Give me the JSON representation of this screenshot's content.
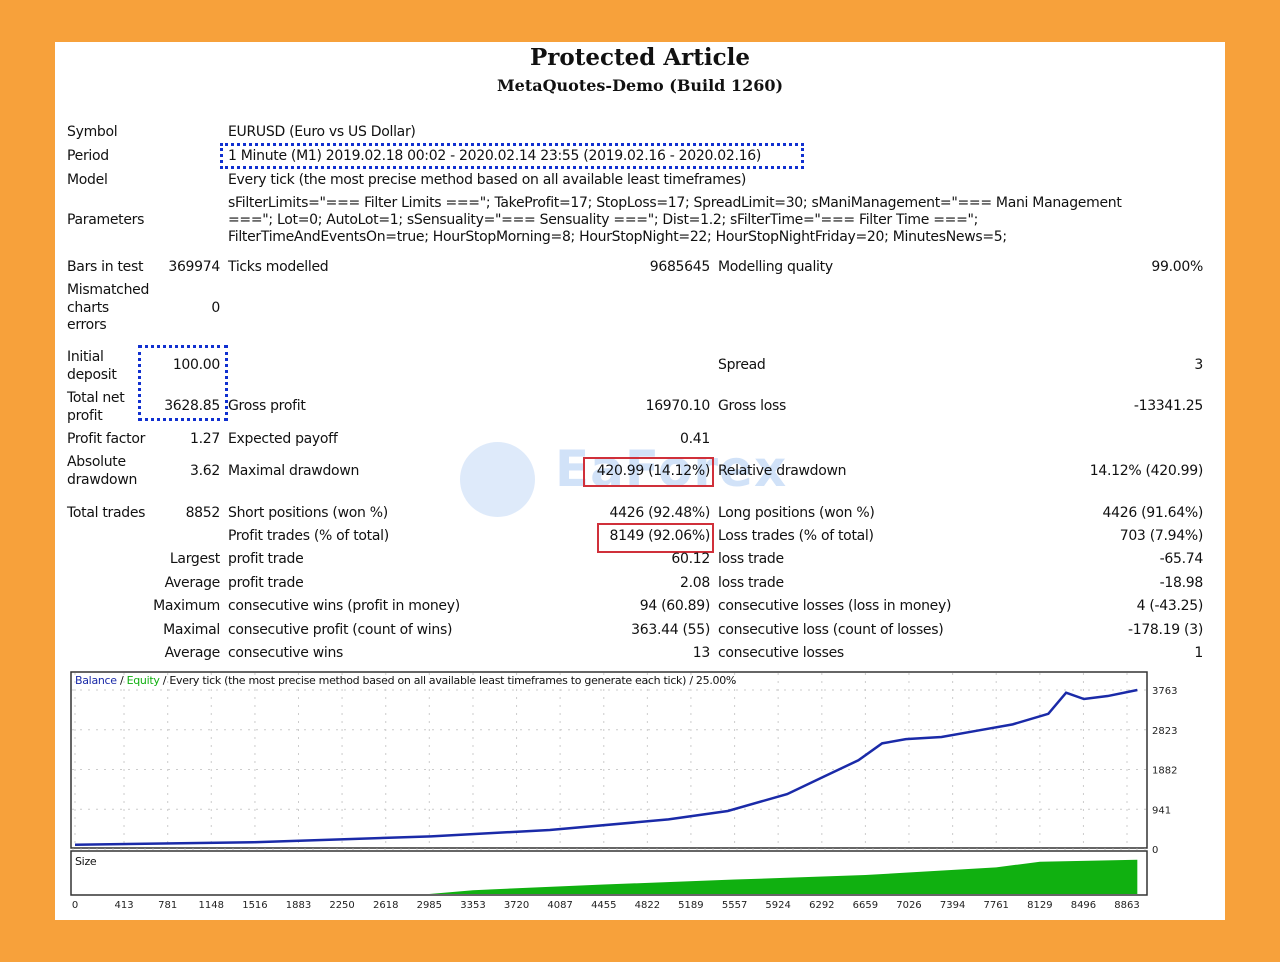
{
  "header": {
    "title": "Protected Article",
    "subtitle": "MetaQuotes-Demo (Build 1260)"
  },
  "info": {
    "symbol_label": "Symbol",
    "symbol": "EURUSD (Euro vs US Dollar)",
    "period_label": "Period",
    "period": "1 Minute (M1) 2019.02.18 00:02 - 2020.02.14 23:55 (2019.02.16 - 2020.02.16)",
    "model_label": "Model",
    "model": "Every tick (the most precise method based on all available least timeframes)",
    "parameters_label": "Parameters",
    "parameters": [
      "sFilterLimits=\"=== Filter Limits ===\"; TakeProfit=17; StopLoss=17; SpreadLimit=30; sManiManagement=\"=== Mani Management",
      "===\"; Lot=0; AutoLot=1; sSensuality=\"=== Sensuality ===\"; Dist=1.2; sFilterTime=\"=== Filter Time ===\";",
      "FilterTimeAndEventsOn=true; HourStopMorning=8; HourStopNight=22; HourStopNightFriday=20; MinutesNews=5;"
    ]
  },
  "stats": {
    "bars_label": "Bars in test",
    "bars": "369974",
    "ticks_label": "Ticks modelled",
    "ticks": "9685645",
    "quality_label": "Modelling quality",
    "quality": "99.00%",
    "mismatch_label": [
      "Mismatched",
      "charts",
      "errors"
    ],
    "mismatch": "0",
    "deposit_label": [
      "Initial",
      "deposit"
    ],
    "deposit": "100.00",
    "spread_label": "Spread",
    "spread": "3",
    "netprofit_label": [
      "Total net",
      "profit"
    ],
    "netprofit": "3628.85",
    "grossprofit_label": "Gross profit",
    "grossprofit": "16970.10",
    "grossloss_label": "Gross loss",
    "grossloss": "-13341.25",
    "pf_label": "Profit factor",
    "pf": "1.27",
    "payoff_label": "Expected payoff",
    "payoff": "0.41",
    "absdd_label": [
      "Absolute",
      "drawdown"
    ],
    "absdd": "3.62",
    "maxdd_label": "Maximal drawdown",
    "maxdd": "420.99 (14.12%)",
    "reldd_label": "Relative drawdown",
    "reldd": "14.12% (420.99)",
    "trades_label": "Total trades",
    "trades": "8852",
    "short_label": "Short positions (won %)",
    "short": "4426 (92.48%)",
    "long_label": "Long positions (won %)",
    "long": "4426 (91.64%)",
    "profittrades_label": "Profit trades (% of total)",
    "profittrades": "8149 (92.06%)",
    "losstrades_label": "Loss trades (% of total)",
    "losstrades": "703 (7.94%)",
    "rows": [
      {
        "l": "Largest",
        "a": "profit trade",
        "av": "60.12",
        "b": "loss trade",
        "bv": "-65.74"
      },
      {
        "l": "Average",
        "a": "profit trade",
        "av": "2.08",
        "b": "loss trade",
        "bv": "-18.98"
      },
      {
        "l": "Maximum",
        "a": "consecutive wins (profit in money)",
        "av": "94 (60.89)",
        "b": "consecutive losses (loss in money)",
        "bv": "4 (-43.25)"
      },
      {
        "l": "Maximal",
        "a": "consecutive profit (count of wins)",
        "av": "363.44 (55)",
        "b": "consecutive loss (count of losses)",
        "bv": "-178.19 (3)"
      },
      {
        "l": "Average",
        "a": "consecutive wins",
        "av": "13",
        "b": "consecutive losses",
        "bv": "1"
      }
    ]
  },
  "watermark": "EaForex",
  "chart_data": {
    "type": "line",
    "legend": {
      "balance": "Balance",
      "sep1": " / ",
      "equity": "Equity",
      "rest": " / Every tick (the most precise method based on all available least timeframes to generate each tick) / 25.00%"
    },
    "y_ticks": [
      "3763",
      "2823",
      "1882",
      "941",
      "0"
    ],
    "ylim": [
      0,
      3763
    ],
    "x_ticks": [
      "0",
      "413",
      "781",
      "1148",
      "1516",
      "1883",
      "2250",
      "2618",
      "2985",
      "3353",
      "3720",
      "4087",
      "4455",
      "4822",
      "5189",
      "5557",
      "5924",
      "6292",
      "6659",
      "7026",
      "7394",
      "7761",
      "8129",
      "8496",
      "8863"
    ],
    "xlim": [
      0,
      8863
    ],
    "volume_label": "Size",
    "series": [
      {
        "name": "Balance",
        "color": "#1a2aa8",
        "points": [
          [
            0,
            100
          ],
          [
            1500,
            160
          ],
          [
            3000,
            300
          ],
          [
            4000,
            450
          ],
          [
            5000,
            700
          ],
          [
            5500,
            900
          ],
          [
            6000,
            1300
          ],
          [
            6300,
            1700
          ],
          [
            6600,
            2100
          ],
          [
            6800,
            2500
          ],
          [
            7000,
            2600
          ],
          [
            7300,
            2650
          ],
          [
            7600,
            2800
          ],
          [
            7900,
            2950
          ],
          [
            8200,
            3200
          ],
          [
            8350,
            3700
          ],
          [
            8500,
            3550
          ],
          [
            8700,
            3620
          ],
          [
            8950,
            3763
          ]
        ]
      }
    ],
    "volume": {
      "color": "#10b010",
      "points": [
        [
          0,
          0
        ],
        [
          2985,
          0
        ],
        [
          3353,
          0.1
        ],
        [
          4455,
          0.25
        ],
        [
          5557,
          0.38
        ],
        [
          6659,
          0.5
        ],
        [
          7761,
          0.7
        ],
        [
          8129,
          0.85
        ],
        [
          8950,
          0.9
        ]
      ]
    }
  },
  "colors": {
    "frame": "#f7a13b",
    "highlight_blue": "#1030d0",
    "highlight_red": "#d0303a"
  }
}
